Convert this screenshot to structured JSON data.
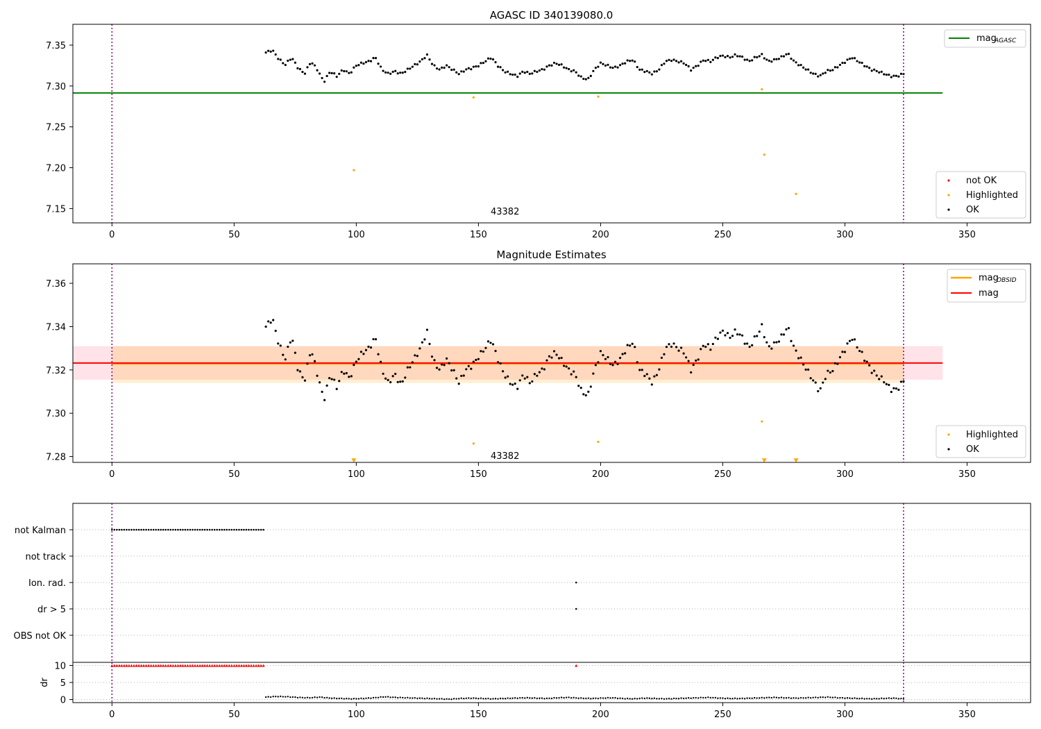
{
  "chart_data": [
    {
      "panel": "top",
      "type": "scatter",
      "title": "AGASC ID 340139080.0",
      "xlim": [
        -16,
        376
      ],
      "ylim": [
        7.1325,
        7.3755
      ],
      "xticks": [
        0,
        50,
        100,
        150,
        200,
        250,
        300,
        350
      ],
      "yticks": [
        7.15,
        7.2,
        7.25,
        7.3,
        7.35
      ],
      "ytick_labels": [
        "7.15",
        "7.20",
        "7.25",
        "7.30",
        "7.35"
      ],
      "vlines": [
        0,
        324
      ],
      "hline": {
        "name": "mag_AGASC",
        "label": "mag",
        "sub": "AGASC",
        "y": 7.2915,
        "x": [
          -16,
          340
        ],
        "color": "#008000"
      },
      "annotation": {
        "text": "43382",
        "x": 155,
        "y": 7.147
      },
      "series": [
        {
          "name": "not OK",
          "color": "#ff0000",
          "x": [],
          "y": []
        },
        {
          "name": "Highlighted",
          "color": "#ffa500",
          "x": [
            99,
            148,
            199,
            266,
            267,
            280
          ],
          "y": [
            7.197,
            7.286,
            7.287,
            7.296,
            7.216,
            7.168
          ]
        },
        {
          "name": "OK",
          "color": "#000000",
          "x_start": 63,
          "x_end": 324,
          "y_anchors": [
            7.341,
            7.344,
            7.333,
            7.326,
            7.335,
            7.322,
            7.315,
            7.33,
            7.32,
            7.305,
            7.318,
            7.312,
            7.32,
            7.315,
            7.325,
            7.328,
            7.33,
            7.335,
            7.32,
            7.315,
            7.318,
            7.315,
            7.32,
            7.325,
            7.33,
            7.338,
            7.325,
            7.32,
            7.325,
            7.32,
            7.315,
            7.32,
            7.322,
            7.325,
            7.33,
            7.335,
            7.325,
            7.318,
            7.315,
            7.312,
            7.318,
            7.315,
            7.318,
            7.32,
            7.325,
            7.328,
            7.325,
            7.32,
            7.318,
            7.31,
            7.308,
            7.32,
            7.328,
            7.325,
            7.322,
            7.325,
            7.33,
            7.332,
            7.32,
            7.318,
            7.315,
            7.32,
            7.33,
            7.332,
            7.33,
            7.328,
            7.32,
            7.325,
            7.332,
            7.33,
            7.335,
            7.337,
            7.335,
            7.338,
            7.335,
            7.33,
            7.335,
            7.338,
            7.33,
            7.332,
            7.335,
            7.34,
            7.33,
            7.325,
            7.32,
            7.315,
            7.312,
            7.318,
            7.32,
            7.325,
            7.33,
            7.335,
            7.33,
            7.325,
            7.32,
            7.318,
            7.315,
            7.312,
            7.312,
            7.315
          ]
        }
      ],
      "legends": [
        {
          "items": [
            {
              "label": "mag",
              "sub": "AGASC"
            }
          ]
        },
        {
          "items": [
            {
              "label": "not OK"
            },
            {
              "label": "Highlighted"
            },
            {
              "label": "OK"
            }
          ]
        }
      ]
    },
    {
      "panel": "middle",
      "type": "scatter",
      "title": "Magnitude Estimates",
      "xlim": [
        -16,
        376
      ],
      "ylim": [
        7.2773,
        7.369
      ],
      "xticks": [
        0,
        50,
        100,
        150,
        200,
        250,
        300,
        350
      ],
      "yticks": [
        7.28,
        7.3,
        7.32,
        7.34,
        7.36
      ],
      "ytick_labels": [
        "7.28",
        "7.30",
        "7.32",
        "7.34",
        "7.36"
      ],
      "vlines": [
        0,
        324
      ],
      "bands": [
        {
          "name": "mag range",
          "y1": 7.3155,
          "y2": 7.331,
          "x": [
            -16,
            340
          ],
          "color": "#ffc0cb",
          "opacity": 0.45
        },
        {
          "name": "mag_OBSID range",
          "y1": 7.314,
          "y2": 7.331,
          "x": [
            0,
            324
          ],
          "color": "#ffa500",
          "opacity": 0.18
        }
      ],
      "lines": [
        {
          "name": "mag_OBSID",
          "label": "mag",
          "sub": "OBSID",
          "y": 7.3228,
          "x": [
            0,
            324
          ],
          "color": "#ffa500"
        },
        {
          "name": "mag",
          "label": "mag",
          "y": 7.3232,
          "x": [
            -16,
            340
          ],
          "color": "#ff0000"
        }
      ],
      "annotation": {
        "text": "43382",
        "x": 155,
        "y": 7.2805
      },
      "series": [
        {
          "name": "Highlighted",
          "color": "#ffa500",
          "x": [
            148,
            199,
            266
          ],
          "y": [
            7.286,
            7.2868,
            7.2962
          ]
        },
        {
          "name": "Highlighted (below range)",
          "marker": "triangle-down",
          "color": "#ffa500",
          "x": [
            99,
            267,
            280
          ],
          "y": [
            7.2782,
            7.2782,
            7.2782
          ]
        },
        {
          "name": "OK",
          "color": "#000000",
          "x_start": 63,
          "x_end": 324,
          "y_anchors": [
            7.34,
            7.344,
            7.332,
            7.325,
            7.336,
            7.32,
            7.315,
            7.33,
            7.318,
            7.306,
            7.318,
            7.312,
            7.32,
            7.316,
            7.324,
            7.328,
            7.33,
            7.335,
            7.32,
            7.314,
            7.318,
            7.313,
            7.32,
            7.325,
            7.33,
            7.338,
            7.324,
            7.32,
            7.325,
            7.32,
            7.314,
            7.32,
            7.322,
            7.326,
            7.33,
            7.334,
            7.325,
            7.318,
            7.314,
            7.312,
            7.318,
            7.314,
            7.318,
            7.32,
            7.326,
            7.328,
            7.324,
            7.32,
            7.318,
            7.31,
            7.308,
            7.32,
            7.328,
            7.325,
            7.322,
            7.325,
            7.33,
            7.333,
            7.32,
            7.318,
            7.314,
            7.32,
            7.33,
            7.332,
            7.33,
            7.328,
            7.32,
            7.325,
            7.332,
            7.33,
            7.335,
            7.338,
            7.335,
            7.338,
            7.335,
            7.33,
            7.335,
            7.34,
            7.33,
            7.332,
            7.335,
            7.34,
            7.33,
            7.325,
            7.32,
            7.315,
            7.31,
            7.318,
            7.32,
            7.325,
            7.33,
            7.335,
            7.33,
            7.325,
            7.32,
            7.317,
            7.315,
            7.311,
            7.311,
            7.315
          ]
        }
      ],
      "legends": [
        {
          "items": [
            {
              "label": "mag",
              "sub": "OBSID"
            },
            {
              "label": "mag"
            }
          ]
        },
        {
          "items": [
            {
              "label": "Highlighted"
            },
            {
              "label": "OK"
            }
          ]
        }
      ]
    },
    {
      "panel": "bottom",
      "type": "scatter",
      "xlim": [
        -16,
        376
      ],
      "xticks": [
        0,
        50,
        100,
        150,
        200,
        250,
        300,
        350
      ],
      "vlines": [
        0,
        324
      ],
      "flag_rows": [
        "not Kalman",
        "not track",
        "Ion. rad.",
        "dr > 5",
        "OBS not OK"
      ],
      "flags": [
        {
          "row": "not Kalman",
          "x_start": 0,
          "x_end": 62
        },
        {
          "row": "Ion. rad.",
          "x": [
            190
          ]
        },
        {
          "row": "dr > 5",
          "x": [
            190
          ]
        }
      ]
    },
    {
      "panel": "dr",
      "type": "scatter",
      "ylabel": "dr",
      "ylim": [
        -0.5,
        10.5
      ],
      "xlim": [
        -16,
        376
      ],
      "yticks": [
        0,
        5,
        10
      ],
      "ytick_labels": [
        "0",
        "5",
        "10"
      ],
      "xticks": [
        0,
        50,
        100,
        150,
        200,
        250,
        300,
        350
      ],
      "vlines": [
        0,
        324
      ],
      "series": [
        {
          "name": "clipped (dr > 10)",
          "marker": "triangle-up",
          "color": "#ff0000",
          "x_start": 0,
          "x_end": 62,
          "y": 10,
          "extra_x": [
            190
          ]
        },
        {
          "name": "dr",
          "color": "#000000",
          "x_start": 63,
          "x_end": 324,
          "y_anchors": [
            0.7,
            0.9,
            0.8,
            0.6,
            0.5,
            0.7,
            0.4,
            0.3,
            0.2,
            0.3,
            0.5,
            0.8,
            0.6,
            0.5,
            0.4,
            0.3,
            0.2,
            0.1,
            0.3,
            0.4,
            0.3,
            0.2,
            0.3,
            0.4,
            0.5,
            0.4,
            0.3,
            0.5,
            0.6,
            0.4,
            0.3,
            0.4,
            0.5,
            0.3,
            0.2,
            0.4,
            0.3,
            0.2,
            0.3,
            0.4,
            0.5,
            0.6,
            0.4,
            0.3,
            0.3,
            0.4,
            0.5,
            0.6,
            0.5,
            0.4,
            0.5,
            0.6,
            0.7,
            0.5,
            0.4,
            0.3,
            0.2,
            0.3,
            0.4,
            0.2
          ]
        }
      ]
    }
  ]
}
